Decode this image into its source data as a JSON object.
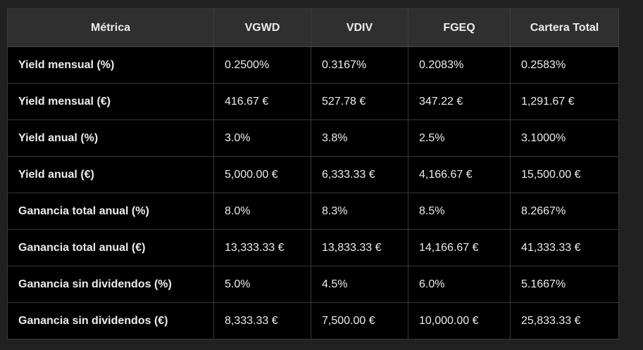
{
  "table": {
    "headers": [
      "Métrica",
      "VGWD",
      "VDIV",
      "FGEQ",
      "Cartera Total"
    ],
    "rows": [
      [
        "Yield mensual (%)",
        "0.2500%",
        "0.3167%",
        "0.2083%",
        "0.2583%"
      ],
      [
        "Yield mensual (€)",
        "416.67 €",
        "527.78 €",
        "347.22 €",
        "1,291.67 €"
      ],
      [
        "Yield anual (%)",
        "3.0%",
        "3.8%",
        "2.5%",
        "3.1000%"
      ],
      [
        "Yield anual (€)",
        "5,000.00 €",
        "6,333.33 €",
        "4,166.67 €",
        "15,500.00 €"
      ],
      [
        "Ganancia total anual (%)",
        "8.0%",
        "8.3%",
        "8.5%",
        "8.2667%"
      ],
      [
        "Ganancia total anual (€)",
        "13,333.33 €",
        "13,833.33 €",
        "14,166.67 €",
        "41,333.33 €"
      ],
      [
        "Ganancia sin dividendos (%)",
        "5.0%",
        "4.5%",
        "6.0%",
        "5.1667%"
      ],
      [
        "Ganancia sin dividendos (€)",
        "8,333.33 €",
        "7,500.00 €",
        "10,000.00 €",
        "25,833.33 €"
      ]
    ]
  },
  "colors": {
    "background": "#212121",
    "header_bg": "#2f2f2f",
    "cell_bg": "#000000",
    "text": "#ececec",
    "border": "#383838"
  }
}
